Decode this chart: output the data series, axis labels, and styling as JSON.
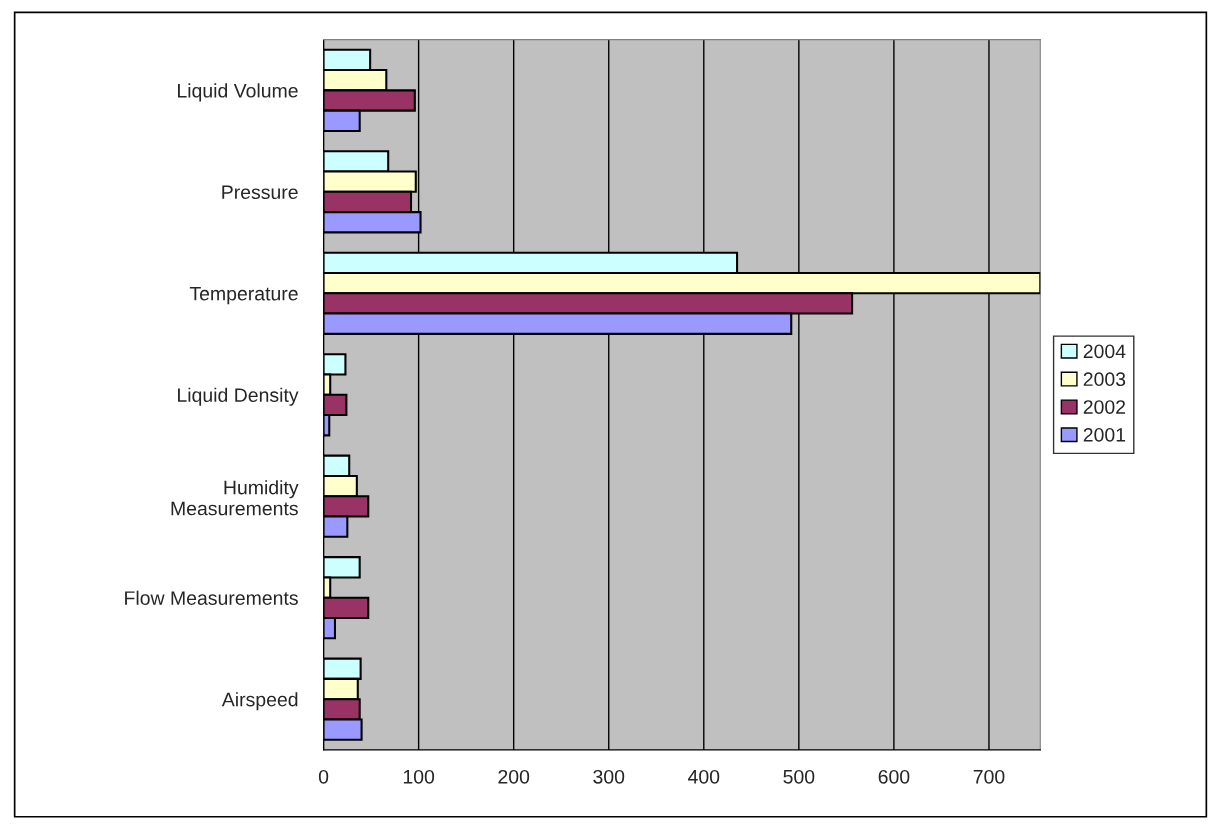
{
  "chart_data": {
    "type": "bar",
    "orientation": "horizontal",
    "categories": [
      "Liquid Volume",
      "Pressure",
      "Temperature",
      "Liquid Density",
      "Humidity\nMeasurements",
      "Flow Measurements",
      "Airspeed"
    ],
    "series": [
      {
        "name": "2004",
        "color": "#ccffff",
        "values": [
          49,
          68,
          435,
          23,
          27,
          38,
          39
        ]
      },
      {
        "name": "2003",
        "color": "#ffffcc",
        "values": [
          66,
          97,
          754,
          7,
          35,
          7,
          36
        ]
      },
      {
        "name": "2002",
        "color": "#993366",
        "values": [
          96,
          92,
          556,
          24,
          47,
          47,
          38
        ]
      },
      {
        "name": "2001",
        "color": "#9999ff",
        "values": [
          38,
          102,
          492,
          6,
          25,
          12,
          40
        ]
      }
    ],
    "xlim": [
      0,
      754
    ],
    "xticks": [
      0,
      100,
      200,
      300,
      400,
      500,
      600,
      700
    ],
    "grid": "x",
    "legend": "right"
  }
}
